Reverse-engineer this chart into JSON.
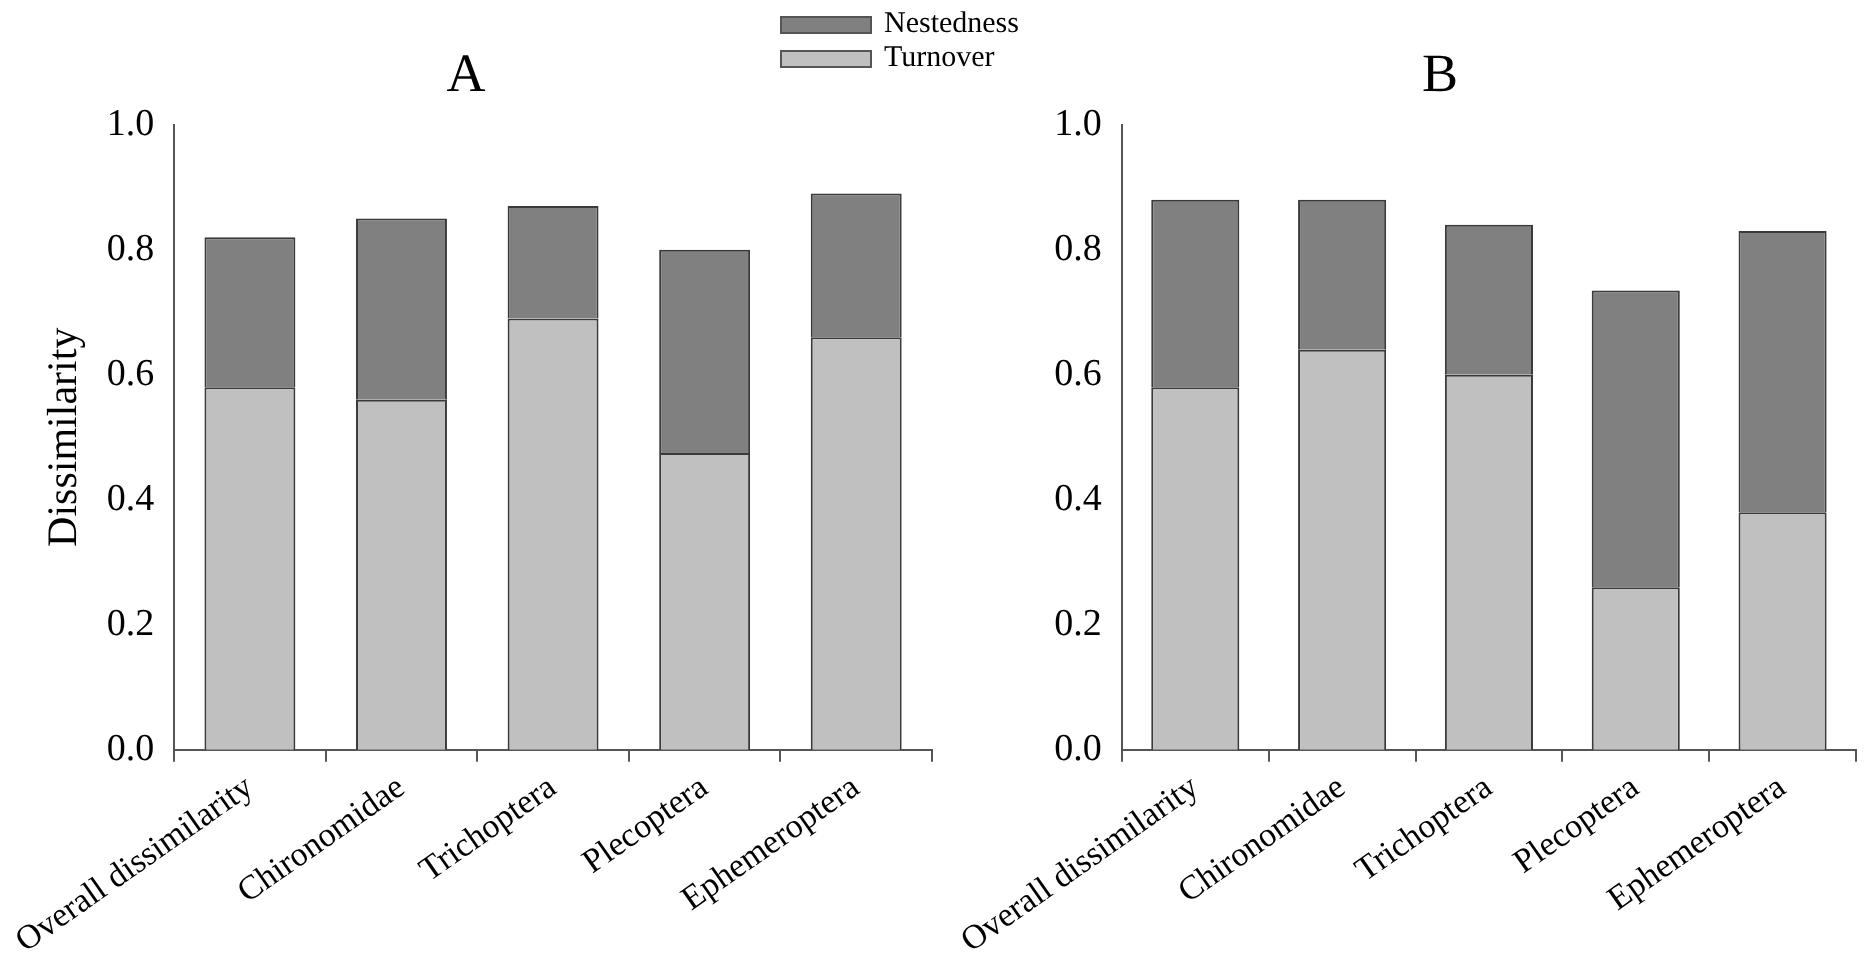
{
  "chart_data": [
    {
      "type": "bar",
      "title": "A",
      "ylabel": "Dissimilarity",
      "stacked": true,
      "legend": "top right",
      "categories": [
        "Overall dissimilarity",
        "Chironomidae",
        "Trichoptera",
        "Plecoptera",
        "Ephemeroptera"
      ],
      "ylim": [
        0,
        1
      ],
      "yticks": [
        {
          "value": 0,
          "label": "0.0"
        },
        {
          "value": 0.2,
          "label": "0.2"
        },
        {
          "value": 0.4,
          "label": "0.4"
        },
        {
          "value": 0.6,
          "label": "0.6"
        },
        {
          "value": 0.8,
          "label": "0.8"
        },
        {
          "value": 1,
          "label": "1.0"
        }
      ],
      "series": [
        {
          "name": "Turnover",
          "color": "#c0c0c0",
          "values": [
            0.58,
            0.56,
            0.69,
            0.475,
            0.66
          ]
        },
        {
          "name": "Nestedness",
          "color": "#808080",
          "values": [
            0.24,
            0.29,
            0.18,
            0.325,
            0.23
          ]
        }
      ]
    },
    {
      "type": "bar",
      "title": "B",
      "stacked": true,
      "categories": [
        "Overall dissimilarity",
        "Chironomidae",
        "Trichoptera",
        "Plecoptera",
        "Ephemeroptera"
      ],
      "ylim": [
        0,
        1
      ],
      "yticks": [
        {
          "value": 0,
          "label": "0.0"
        },
        {
          "value": 0.2,
          "label": "0.2"
        },
        {
          "value": 0.4,
          "label": "0.4"
        },
        {
          "value": 0.6,
          "label": "0.6"
        },
        {
          "value": 0.8,
          "label": "0.8"
        },
        {
          "value": 1,
          "label": "1.0"
        }
      ],
      "series": [
        {
          "color": "#c0c0c0",
          "values": [
            0.58,
            0.64,
            0.6,
            0.26,
            0.38
          ]
        },
        {
          "color": "#808080",
          "values": [
            0.3,
            0.24,
            0.24,
            0.475,
            0.45
          ]
        }
      ]
    }
  ]
}
